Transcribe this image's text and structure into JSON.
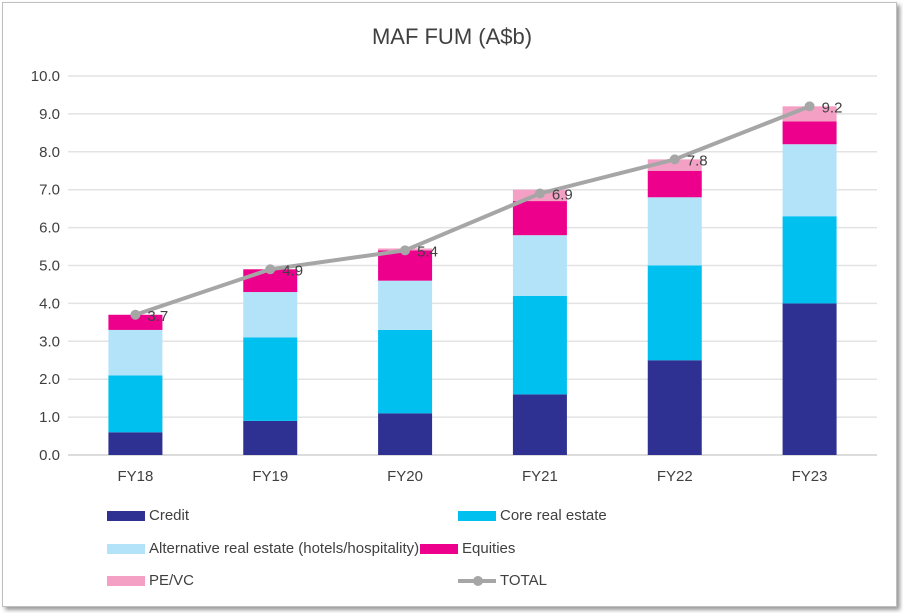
{
  "chart_data": {
    "type": "bar",
    "stacked": true,
    "title": "MAF FUM (A$b)",
    "xlabel": "",
    "ylabel": "",
    "ylim": [
      0,
      10
    ],
    "yticks": [
      "0.0",
      "1.0",
      "2.0",
      "3.0",
      "4.0",
      "5.0",
      "6.0",
      "7.0",
      "8.0",
      "9.0",
      "10.0"
    ],
    "grid": true,
    "legend_position": "bottom",
    "categories": [
      "FY18",
      "FY19",
      "FY20",
      "FY21",
      "FY22",
      "FY23"
    ],
    "series": [
      {
        "name": "Credit",
        "color": "#2e3192",
        "values": [
          0.6,
          0.9,
          1.1,
          1.6,
          2.5,
          4.0
        ]
      },
      {
        "name": "Core real estate",
        "color": "#00c0f0",
        "values": [
          1.5,
          2.2,
          2.2,
          2.6,
          2.5,
          2.3
        ]
      },
      {
        "name": "Alternative real estate (hotels/hospitality)",
        "color": "#b3e3f8",
        "values": [
          1.2,
          1.2,
          1.3,
          1.6,
          1.8,
          1.9
        ]
      },
      {
        "name": "Equities",
        "color": "#ec008c",
        "values": [
          0.4,
          0.6,
          0.8,
          0.9,
          0.7,
          0.6
        ]
      },
      {
        "name": "PE/VC",
        "color": "#f4a0c4",
        "values": [
          0.0,
          0.0,
          0.05,
          0.3,
          0.3,
          0.4
        ]
      }
    ],
    "line": {
      "name": "TOTAL",
      "color": "#a6a6a6",
      "values": [
        3.7,
        4.9,
        5.4,
        6.9,
        7.8,
        9.2
      ],
      "labels": [
        "3.7",
        "4.9",
        "5.4",
        "6.9",
        "7.8",
        "9.2"
      ]
    }
  }
}
